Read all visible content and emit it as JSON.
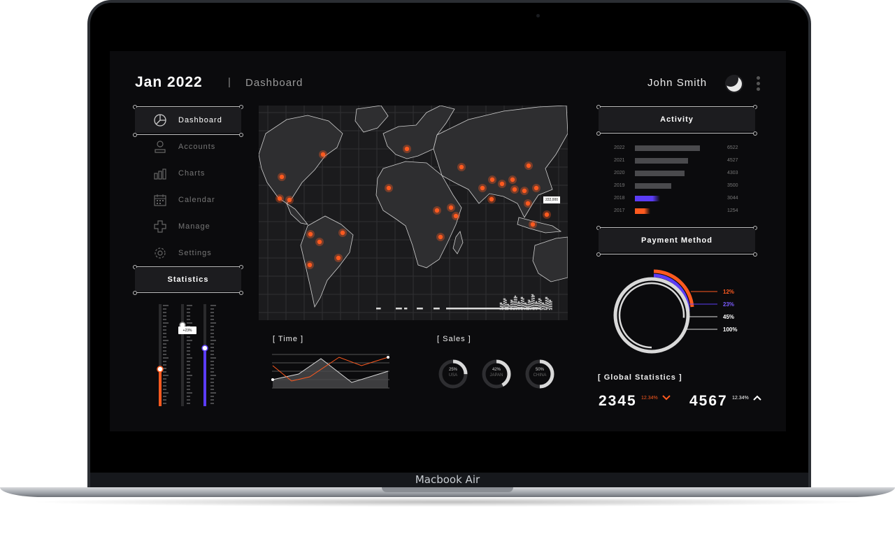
{
  "header": {
    "title": "Jan 2022",
    "separator": "|",
    "subtitle": "Dashboard",
    "user": "John Smith"
  },
  "sidebar": {
    "items": [
      {
        "label": "Dashboard",
        "icon": "pie-chart-icon",
        "active": true
      },
      {
        "label": "Accounts",
        "icon": "user-icon"
      },
      {
        "label": "Charts",
        "icon": "bar-chart-icon"
      },
      {
        "label": "Calendar",
        "icon": "calendar-icon"
      },
      {
        "label": "Manage",
        "icon": "plus-icon"
      },
      {
        "label": "Settings",
        "icon": "gear-icon"
      }
    ],
    "statistics_label": "Statistics",
    "slider_tooltip": "+23%"
  },
  "map": {
    "tooltip": "222,000"
  },
  "time": {
    "label": "[ Time ]"
  },
  "sales": {
    "label": "[ Sales ]",
    "donuts": [
      {
        "pct": "25%",
        "country": "USA"
      },
      {
        "pct": "42%",
        "country": "JAPAN"
      },
      {
        "pct": "50%",
        "country": "CHINA"
      }
    ]
  },
  "activity": {
    "label": "Activity",
    "rows": [
      {
        "year": "2022",
        "value": "6522"
      },
      {
        "year": "2021",
        "value": "4527"
      },
      {
        "year": "2020",
        "value": "4303"
      },
      {
        "year": "2019",
        "value": "3500"
      },
      {
        "year": "2018",
        "value": "3044"
      },
      {
        "year": "2017",
        "value": "1254"
      }
    ]
  },
  "payment": {
    "label": "Payment Method",
    "legend": [
      {
        "text": "12%",
        "color": "#ff5a1f"
      },
      {
        "text": "23%",
        "color": "#5b3cf5"
      },
      {
        "text": "45%",
        "color": "#ffffff"
      },
      {
        "text": "100%",
        "color": "#ffffff"
      }
    ]
  },
  "global": {
    "label": "[ Global Statistics ]",
    "stats": [
      {
        "value": "2345",
        "pct": "12.34%",
        "direction": "down",
        "color": "#ff5a1f"
      },
      {
        "value": "4567",
        "pct": "12.34%",
        "direction": "up",
        "color": "#ffffff"
      }
    ]
  },
  "device": {
    "label": "Macbook Air"
  },
  "colors": {
    "accent": "#ff5a1f",
    "purple": "#5b3cf5",
    "background": "#0b0b0d"
  }
}
